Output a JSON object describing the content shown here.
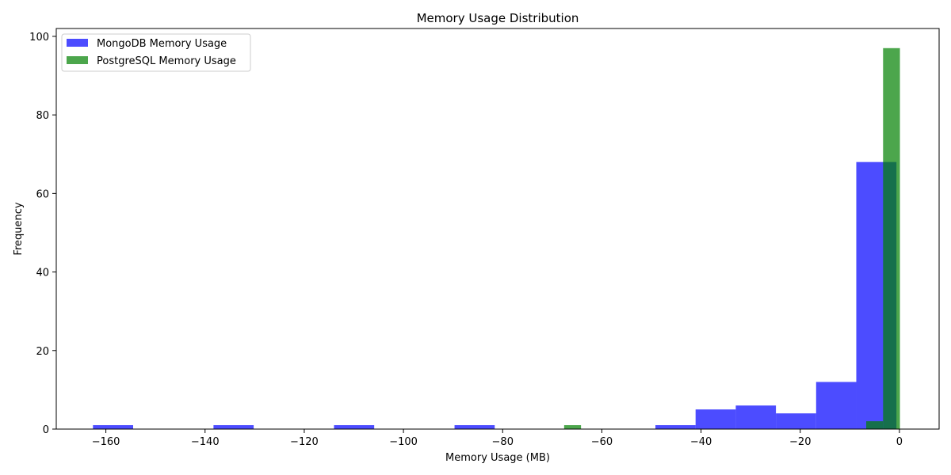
{
  "chart_data": {
    "type": "bar",
    "title": "Memory Usage Distribution",
    "xlabel": "Memory Usage (MB)",
    "ylabel": "Frequency",
    "xlim": [
      -170,
      8
    ],
    "ylim": [
      0,
      102
    ],
    "xticks": [
      -160,
      -140,
      -120,
      -100,
      -80,
      -60,
      -40,
      -20,
      0
    ],
    "yticks": [
      0,
      20,
      40,
      60,
      80,
      100
    ],
    "grid": false,
    "legend_position": "top-left",
    "series": [
      {
        "name": "MongoDB Memory Usage",
        "color": "#0000ff",
        "opacity": 0.7,
        "bins": [
          {
            "x0": -162.6,
            "x1": -154.5,
            "count": 1
          },
          {
            "x0": -154.5,
            "x1": -146.4,
            "count": 0
          },
          {
            "x0": -146.4,
            "x1": -138.3,
            "count": 0
          },
          {
            "x0": -138.3,
            "x1": -130.2,
            "count": 1
          },
          {
            "x0": -130.2,
            "x1": -122.1,
            "count": 0
          },
          {
            "x0": -122.1,
            "x1": -114.0,
            "count": 0
          },
          {
            "x0": -114.0,
            "x1": -105.9,
            "count": 1
          },
          {
            "x0": -105.9,
            "x1": -97.8,
            "count": 0
          },
          {
            "x0": -97.8,
            "x1": -89.7,
            "count": 0
          },
          {
            "x0": -89.7,
            "x1": -81.6,
            "count": 1
          },
          {
            "x0": -81.6,
            "x1": -73.5,
            "count": 0
          },
          {
            "x0": -73.5,
            "x1": -65.4,
            "count": 0
          },
          {
            "x0": -65.4,
            "x1": -57.3,
            "count": 0
          },
          {
            "x0": -57.3,
            "x1": -49.2,
            "count": 0
          },
          {
            "x0": -49.2,
            "x1": -41.1,
            "count": 1
          },
          {
            "x0": -41.1,
            "x1": -33.0,
            "count": 5
          },
          {
            "x0": -33.0,
            "x1": -24.9,
            "count": 6
          },
          {
            "x0": -24.9,
            "x1": -16.8,
            "count": 4
          },
          {
            "x0": -16.8,
            "x1": -8.7,
            "count": 12
          },
          {
            "x0": -8.7,
            "x1": -0.6,
            "count": 68
          }
        ]
      },
      {
        "name": "PostgreSQL Memory Usage",
        "color": "#008000",
        "opacity": 0.7,
        "bins": [
          {
            "x0": -67.6,
            "x1": -64.2,
            "count": 1
          },
          {
            "x0": -6.7,
            "x1": -3.3,
            "count": 2
          },
          {
            "x0": -3.3,
            "x1": 0.1,
            "count": 97
          }
        ]
      }
    ]
  }
}
